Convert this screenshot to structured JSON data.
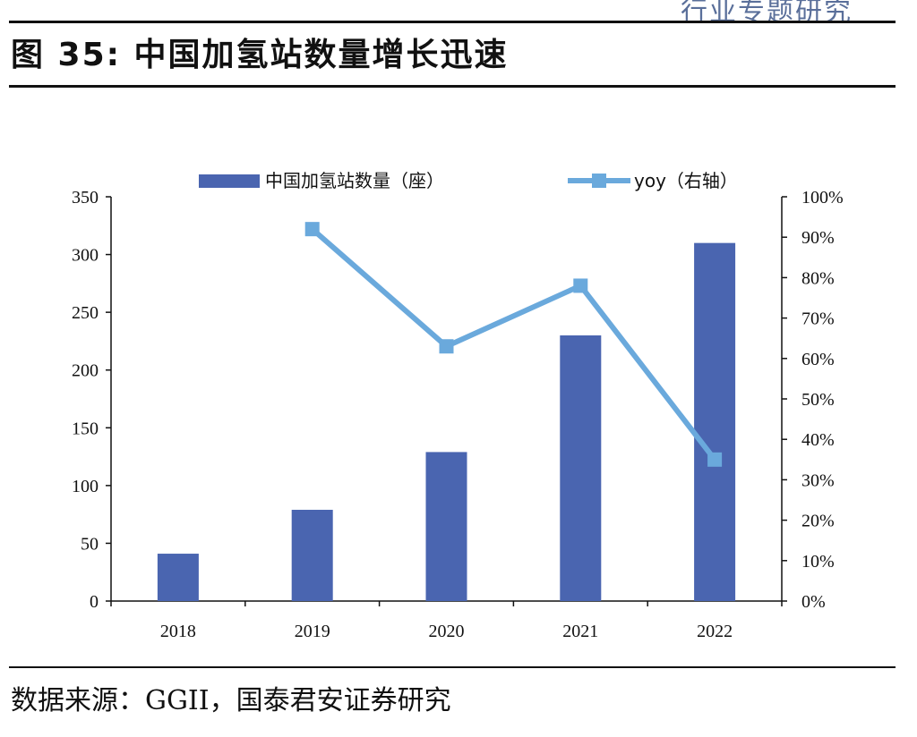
{
  "header": {
    "corner_text": "行业专题研究",
    "figure_title": "图 35:  中国加氢站数量增长迅速"
  },
  "source": "数据来源：GGII，国泰君安证券研究",
  "colors": {
    "bar": "#4a65b0",
    "line": "#6aa9dc",
    "axis": "#111111"
  },
  "chart_data": {
    "type": "bar",
    "categories": [
      "2018",
      "2019",
      "2020",
      "2021",
      "2022"
    ],
    "series": [
      {
        "name": "中国加氢站数量（座）",
        "type": "bar",
        "axis": "left",
        "values": [
          41,
          79,
          129,
          230,
          310
        ]
      },
      {
        "name": "yoy（右轴）",
        "type": "line",
        "axis": "right",
        "values": [
          null,
          0.92,
          0.63,
          0.78,
          0.35
        ]
      }
    ],
    "ylim_left": [
      0,
      350
    ],
    "yticks_left": [
      "0",
      "50",
      "100",
      "150",
      "200",
      "250",
      "300",
      "350"
    ],
    "ylim_right": [
      0,
      1.0
    ],
    "yticks_right": [
      "0%",
      "10%",
      "20%",
      "30%",
      "40%",
      "50%",
      "60%",
      "70%",
      "80%",
      "90%",
      "100%"
    ],
    "grid": false,
    "legend_position": "top"
  }
}
